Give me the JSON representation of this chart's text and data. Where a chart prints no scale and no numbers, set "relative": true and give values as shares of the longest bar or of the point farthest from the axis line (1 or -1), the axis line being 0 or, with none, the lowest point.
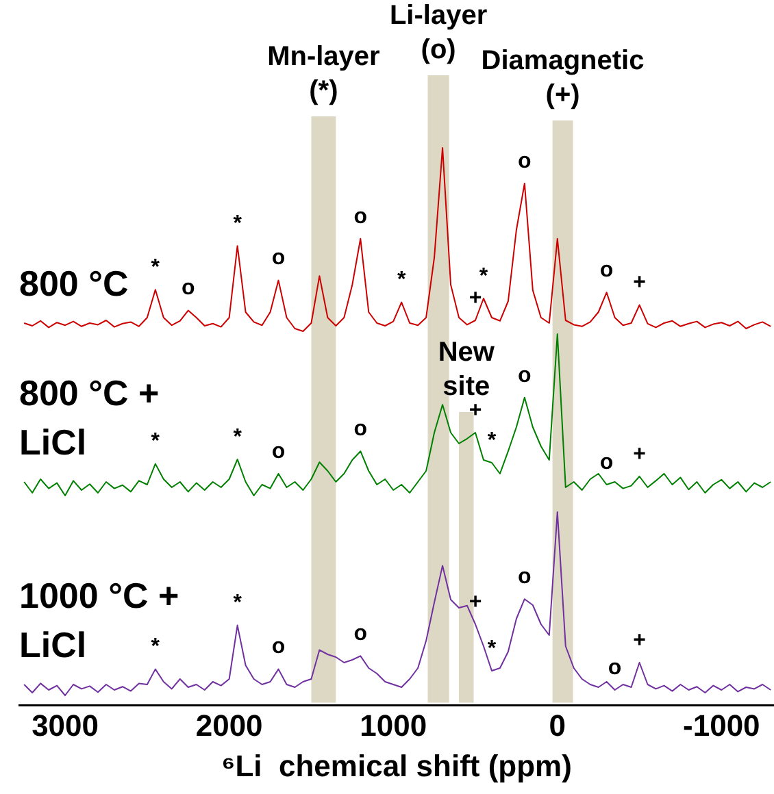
{
  "chart_data": {
    "type": "line",
    "relative": true,
    "xlabel": "⁶Li  chemical shift (ppm)",
    "xlim": [
      3280,
      -1320
    ],
    "xticks": [
      3000,
      2000,
      1000,
      0,
      -1000
    ],
    "grid": false,
    "x": [
      3250,
      3200,
      3150,
      3100,
      3050,
      3000,
      2950,
      2900,
      2850,
      2800,
      2750,
      2700,
      2650,
      2600,
      2550,
      2500,
      2450,
      2400,
      2350,
      2300,
      2250,
      2200,
      2150,
      2100,
      2050,
      2000,
      1950,
      1900,
      1850,
      1800,
      1750,
      1700,
      1650,
      1600,
      1550,
      1500,
      1450,
      1400,
      1350,
      1300,
      1250,
      1200,
      1150,
      1100,
      1050,
      1000,
      950,
      900,
      850,
      800,
      750,
      700,
      650,
      600,
      550,
      500,
      450,
      400,
      350,
      300,
      250,
      200,
      150,
      100,
      50,
      0,
      -50,
      -100,
      -150,
      -200,
      -250,
      -300,
      -350,
      -400,
      -450,
      -500,
      -550,
      -600,
      -650,
      -700,
      -750,
      -800,
      -850,
      -900,
      -950,
      -1000,
      -1050,
      -1100,
      -1150,
      -1200,
      -1250,
      -1300
    ],
    "series": [
      {
        "name": "800 °C",
        "color": "#cc0000",
        "values": [
          0.68,
          0.675,
          0.684,
          0.672,
          0.681,
          0.676,
          0.683,
          0.674,
          0.68,
          0.677,
          0.685,
          0.673,
          0.679,
          0.682,
          0.674,
          0.69,
          0.741,
          0.69,
          0.676,
          0.684,
          0.703,
          0.69,
          0.675,
          0.679,
          0.673,
          0.69,
          0.821,
          0.7,
          0.682,
          0.676,
          0.7,
          0.758,
          0.69,
          0.67,
          0.665,
          0.68,
          0.766,
          0.69,
          0.675,
          0.69,
          0.75,
          0.834,
          0.7,
          0.68,
          0.675,
          0.683,
          0.718,
          0.68,
          0.676,
          0.69,
          0.8,
          1,
          0.75,
          0.69,
          0.677,
          0.685,
          0.725,
          0.69,
          0.684,
          0.72,
          0.85,
          0.935,
          0.74,
          0.69,
          0.68,
          0.834,
          0.685,
          0.677,
          0.674,
          0.682,
          0.7,
          0.736,
          0.69,
          0.676,
          0.68,
          0.713,
          0.679,
          0.672,
          0.68,
          0.684,
          0.674,
          0.679,
          0.683,
          0.672,
          0.678,
          0.681,
          0.675,
          0.683,
          0.67,
          0.677,
          0.682,
          0.674
        ]
      },
      {
        "name": "800 °C + LiCl",
        "color": "#008000",
        "values": [
          0.39,
          0.37,
          0.395,
          0.378,
          0.388,
          0.365,
          0.392,
          0.375,
          0.386,
          0.37,
          0.39,
          0.378,
          0.384,
          0.372,
          0.392,
          0.385,
          0.423,
          0.395,
          0.38,
          0.39,
          0.372,
          0.388,
          0.375,
          0.39,
          0.38,
          0.395,
          0.431,
          0.39,
          0.365,
          0.385,
          0.378,
          0.405,
          0.38,
          0.39,
          0.375,
          0.395,
          0.426,
          0.41,
          0.39,
          0.405,
          0.43,
          0.446,
          0.41,
          0.385,
          0.395,
          0.375,
          0.385,
          0.37,
          0.39,
          0.41,
          0.48,
          0.531,
          0.48,
          0.46,
          0.469,
          0.48,
          0.43,
          0.425,
          0.405,
          0.446,
          0.49,
          0.544,
          0.49,
          0.455,
          0.43,
          0.66,
          0.38,
          0.39,
          0.375,
          0.395,
          0.405,
          0.385,
          0.39,
          0.378,
          0.383,
          0.4,
          0.38,
          0.392,
          0.405,
          0.385,
          0.398,
          0.376,
          0.39,
          0.37,
          0.385,
          0.394,
          0.378,
          0.39,
          0.372,
          0.388,
          0.38,
          0.39
        ]
      },
      {
        "name": "1000 °C + LiCl",
        "color": "#7030a0",
        "values": [
          0.02,
          0.005,
          0.022,
          0.01,
          0.018,
          0,
          0.02,
          0.012,
          0.017,
          0.006,
          0.02,
          0.01,
          0.016,
          0.008,
          0.022,
          0.02,
          0.048,
          0.025,
          0.012,
          0.03,
          0.015,
          0.02,
          0.01,
          0.025,
          0.018,
          0.03,
          0.128,
          0.055,
          0.03,
          0.02,
          0.025,
          0.048,
          0.02,
          0.015,
          0.025,
          0.03,
          0.083,
          0.075,
          0.07,
          0.06,
          0.065,
          0.072,
          0.05,
          0.04,
          0.025,
          0.02,
          0.015,
          0.03,
          0.05,
          0.1,
          0.17,
          0.237,
          0.175,
          0.16,
          0.164,
          0.13,
          0.09,
          0.045,
          0.05,
          0.08,
          0.14,
          0.176,
          0.165,
          0.13,
          0.11,
          0.335,
          0.09,
          0.05,
          0.03,
          0.02,
          0.015,
          0.025,
          0.01,
          0.02,
          0.015,
          0.06,
          0.02,
          0.012,
          0.018,
          0.008,
          0.02,
          0.01,
          0.016,
          0.005,
          0.018,
          0.01,
          0.02,
          0.007,
          0.015,
          0.012,
          0.02,
          0.01
        ]
      }
    ],
    "bands": [
      {
        "axis": "x",
        "from": 1500,
        "to": 1350,
        "label": "Mn-layer (*)",
        "color": "#ddd8c4"
      },
      {
        "axis": "x",
        "from": 790,
        "to": 660,
        "label": "Li-layer (o)",
        "color": "#ddd8c4"
      },
      {
        "axis": "x",
        "from": 600,
        "to": 510,
        "label": "New site",
        "color": "#ddd8c4"
      },
      {
        "axis": "x",
        "from": 30,
        "to": -95,
        "label": "Diamagnetic (+)",
        "color": "#ddd8c4"
      }
    ],
    "annotations": [
      {
        "text": "*",
        "x": 2450,
        "y": 0.741
      },
      {
        "text": "o",
        "x": 2250,
        "y": 0.703
      },
      {
        "text": "*",
        "x": 1950,
        "y": 0.821
      },
      {
        "text": "o",
        "x": 1700,
        "y": 0.758
      },
      {
        "text": "o",
        "x": 1200,
        "y": 0.834
      },
      {
        "text": "*",
        "x": 950,
        "y": 0.718
      },
      {
        "text": "+",
        "x": 500,
        "y": 0.685
      },
      {
        "text": "*",
        "x": 450,
        "y": 0.725
      },
      {
        "text": "o",
        "x": 200,
        "y": 0.935
      },
      {
        "text": "o",
        "x": -300,
        "y": 0.736
      },
      {
        "text": "+",
        "x": -500,
        "y": 0.713
      },
      {
        "text": "*",
        "x": 2450,
        "y": 0.423
      },
      {
        "text": "*",
        "x": 1950,
        "y": 0.431
      },
      {
        "text": "o",
        "x": 1700,
        "y": 0.405
      },
      {
        "text": "o",
        "x": 1200,
        "y": 0.446
      },
      {
        "text": "+",
        "x": 500,
        "y": 0.48
      },
      {
        "text": "*",
        "x": 400,
        "y": 0.425
      },
      {
        "text": "o",
        "x": 200,
        "y": 0.544
      },
      {
        "text": "o",
        "x": -300,
        "y": 0.385
      },
      {
        "text": "+",
        "x": -500,
        "y": 0.4
      },
      {
        "text": "*",
        "x": 2450,
        "y": 0.048
      },
      {
        "text": "*",
        "x": 1950,
        "y": 0.128
      },
      {
        "text": "o",
        "x": 1700,
        "y": 0.048
      },
      {
        "text": "o",
        "x": 1200,
        "y": 0.072
      },
      {
        "text": "+",
        "x": 500,
        "y": 0.13
      },
      {
        "text": "*",
        "x": 400,
        "y": 0.045
      },
      {
        "text": "o",
        "x": 200,
        "y": 0.176
      },
      {
        "text": "o",
        "x": -350,
        "y": 0.01
      },
      {
        "text": "+",
        "x": -500,
        "y": 0.06
      }
    ]
  }
}
